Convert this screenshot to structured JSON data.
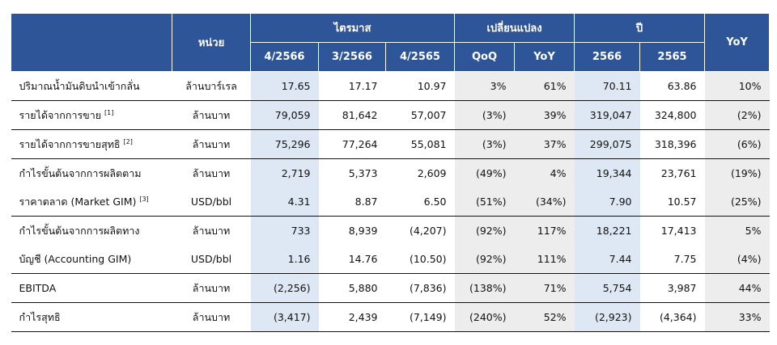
{
  "header": {
    "unit": "หน่วย",
    "quarter_group": "ไตรมาส",
    "change_group": "เปลี่ยนแปลง",
    "year_group": "ปี",
    "yoy_year": "YoY",
    "quarters": [
      "4/2566",
      "3/2566",
      "4/2565"
    ],
    "changes": [
      "QoQ",
      "YoY"
    ],
    "years": [
      "2566",
      "2565"
    ]
  },
  "rows": [
    {
      "label": "ปริมาณน้ำมันดิบนำเข้ากลั่น",
      "note": "",
      "unit": "ล้านบาร์เรล",
      "q1": "17.65",
      "q2": "17.17",
      "q3": "10.97",
      "qoq": "3%",
      "yoy": "61%",
      "y1": "70.11",
      "y2": "63.86",
      "yy": "10%"
    },
    {
      "label": "รายได้จากการขาย",
      "note": "[1]",
      "unit": "ล้านบาท",
      "q1": "79,059",
      "q2": "81,642",
      "q3": "57,007",
      "qoq": "(3%)",
      "yoy": "39%",
      "y1": "319,047",
      "y2": "324,800",
      "yy": "(2%)"
    },
    {
      "label": "รายได้จากการขายสุทธิ",
      "note": "[2]",
      "unit": "ล้านบาท",
      "q1": "75,296",
      "q2": "77,264",
      "q3": "55,081",
      "qoq": "(3%)",
      "yoy": "37%",
      "y1": "299,075",
      "y2": "318,396",
      "yy": "(6%)"
    },
    {
      "label": "กำไรขั้นต้นจากการผลิตตาม",
      "note": "",
      "unit": "ล้านบาท",
      "q1": "2,719",
      "q2": "5,373",
      "q3": "2,609",
      "qoq": "(49%)",
      "yoy": "4%",
      "y1": "19,344",
      "y2": "23,761",
      "yy": "(19%)"
    },
    {
      "label": "ราคาตลาด (Market GIM)",
      "note": "[3]",
      "unit": "USD/bbl",
      "q1": "4.31",
      "q2": "8.87",
      "q3": "6.50",
      "qoq": "(51%)",
      "yoy": "(34%)",
      "y1": "7.90",
      "y2": "10.57",
      "yy": "(25%)"
    },
    {
      "label": "กำไรขั้นต้นจากการผลิตทาง",
      "note": "",
      "unit": "ล้านบาท",
      "q1": "733",
      "q2": "8,939",
      "q3": "(4,207)",
      "qoq": "(92%)",
      "yoy": "117%",
      "y1": "18,221",
      "y2": "17,413",
      "yy": "5%"
    },
    {
      "label": "บัญชี (Accounting GIM)",
      "note": "",
      "unit": "USD/bbl",
      "q1": "1.16",
      "q2": "14.76",
      "q3": "(10.50)",
      "qoq": "(92%)",
      "yoy": "111%",
      "y1": "7.44",
      "y2": "7.75",
      "yy": "(4%)"
    },
    {
      "label": "EBITDA",
      "note": "",
      "unit": "ล้านบาท",
      "q1": "(2,256)",
      "q2": "5,880",
      "q3": "(7,836)",
      "qoq": "(138%)",
      "yoy": "71%",
      "y1": "5,754",
      "y2": "3,987",
      "yy": "44%"
    },
    {
      "label": "กำไรสุทธิ",
      "note": "",
      "unit": "ล้านบาท",
      "q1": "(3,417)",
      "q2": "2,439",
      "q3": "(7,149)",
      "qoq": "(240%)",
      "yoy": "52%",
      "y1": "(2,923)",
      "y2": "(4,364)",
      "yy": "33%"
    }
  ],
  "colors": {
    "header_bg": "#2e5597",
    "highlight_blue": "#dde8f4",
    "highlight_grey": "#ededed"
  }
}
